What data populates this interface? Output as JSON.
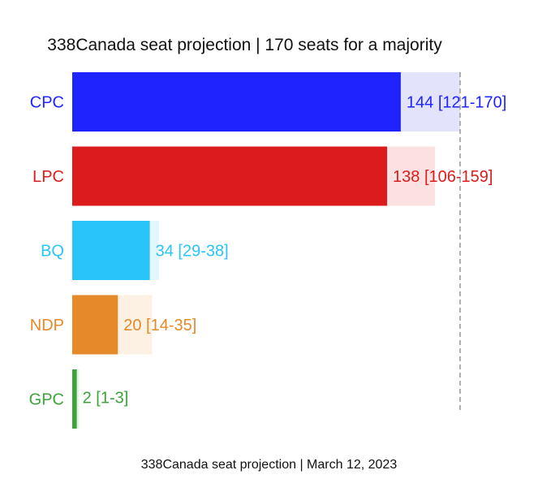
{
  "chart_data": {
    "type": "bar",
    "orientation": "horizontal",
    "title": "338Canada seat projection | 170 seats for a majority",
    "footer": "338Canada seat projection | March 12, 2023",
    "majority_line": 170,
    "xlim": [
      0,
      180
    ],
    "grid": false,
    "legend": "none",
    "categories": [
      "CPC",
      "LPC",
      "BQ",
      "NDP",
      "GPC"
    ],
    "values": [
      144,
      138,
      34,
      20,
      2
    ],
    "ranges": [
      [
        121,
        170
      ],
      [
        106,
        159
      ],
      [
        29,
        38
      ],
      [
        14,
        35
      ],
      [
        1,
        3
      ]
    ],
    "value_labels": [
      "144 [121-170]",
      "138 [106-159]",
      "34 [29-38]",
      "20 [14-35]",
      "2 [1-3]"
    ],
    "colors": [
      "#1f24ff",
      "#dc1c1c",
      "#29c4fa",
      "#e5892a",
      "#3aa43a"
    ],
    "range_colors": [
      "#e3e3fb",
      "#fbe1e1",
      "#e2f6fe",
      "#fdf1e3",
      "#e3f3e3"
    ]
  }
}
